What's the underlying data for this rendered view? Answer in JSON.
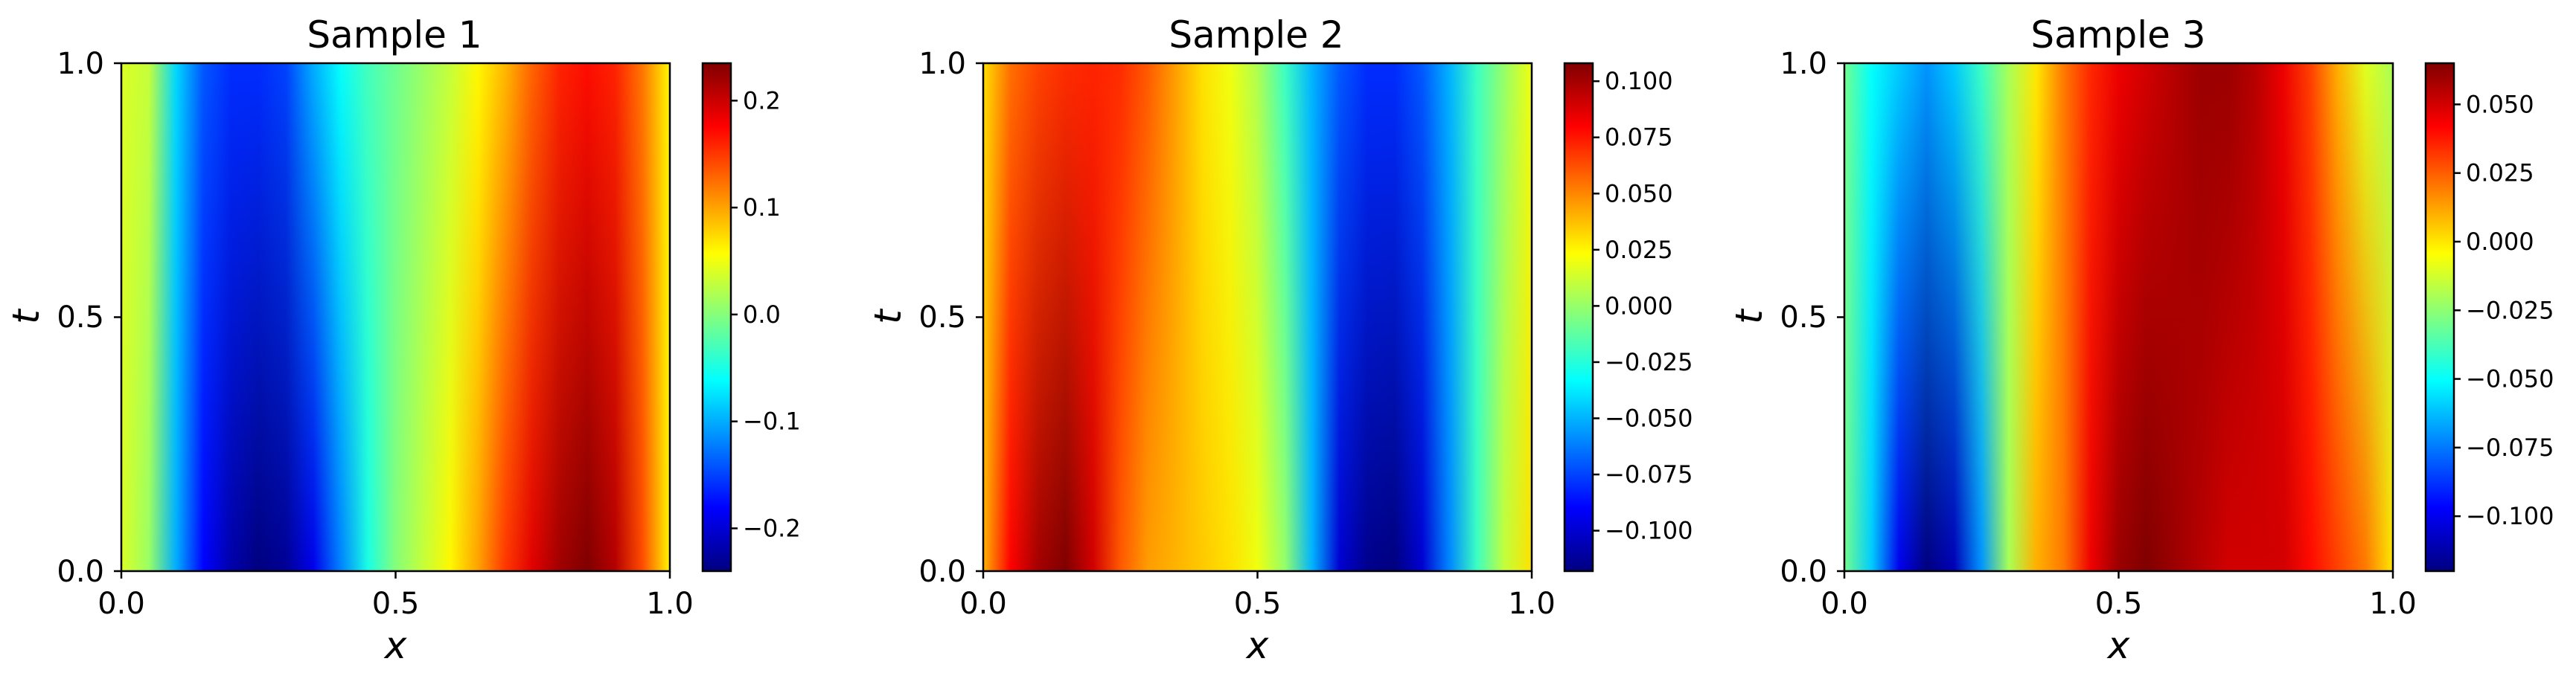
{
  "chart_data": [
    {
      "type": "heatmap",
      "title": "Sample 1",
      "xlabel": "x",
      "ylabel": "t",
      "xlim": [
        0.0,
        1.0
      ],
      "ylim": [
        0.0,
        1.0
      ],
      "x_ticks": [
        "0.0",
        "0.5",
        "1.0"
      ],
      "y_ticks": [
        "0.0",
        "0.5",
        "1.0"
      ],
      "colormap": "jet",
      "vmin": -0.24,
      "vmax": 0.235,
      "colorbar_ticks": [
        0.2,
        0.1,
        0.0,
        -0.1,
        -0.2
      ],
      "colorbar_tick_labels": [
        "0.2",
        "0.1",
        "0.0",
        "−0.1",
        "−0.2"
      ],
      "field": {
        "t_bottom": [
          {
            "x": 0.0,
            "v": 0.04
          },
          {
            "x": 0.05,
            "v": 0.01
          },
          {
            "x": 0.1,
            "v": -0.1
          },
          {
            "x": 0.15,
            "v": -0.18
          },
          {
            "x": 0.2,
            "v": -0.22
          },
          {
            "x": 0.25,
            "v": -0.24
          },
          {
            "x": 0.3,
            "v": -0.23
          },
          {
            "x": 0.35,
            "v": -0.19
          },
          {
            "x": 0.4,
            "v": -0.12
          },
          {
            "x": 0.45,
            "v": -0.05
          },
          {
            "x": 0.5,
            "v": 0.0
          },
          {
            "x": 0.55,
            "v": 0.03
          },
          {
            "x": 0.6,
            "v": 0.06
          },
          {
            "x": 0.65,
            "v": 0.1
          },
          {
            "x": 0.7,
            "v": 0.15
          },
          {
            "x": 0.75,
            "v": 0.19
          },
          {
            "x": 0.8,
            "v": 0.22
          },
          {
            "x": 0.85,
            "v": 0.235
          },
          {
            "x": 0.9,
            "v": 0.21
          },
          {
            "x": 0.95,
            "v": 0.14
          },
          {
            "x": 1.0,
            "v": 0.06
          }
        ],
        "t_top": [
          {
            "x": 0.0,
            "v": 0.04
          },
          {
            "x": 0.05,
            "v": 0.03
          },
          {
            "x": 0.1,
            "v": -0.08
          },
          {
            "x": 0.15,
            "v": -0.14
          },
          {
            "x": 0.2,
            "v": -0.16
          },
          {
            "x": 0.25,
            "v": -0.16
          },
          {
            "x": 0.3,
            "v": -0.15
          },
          {
            "x": 0.35,
            "v": -0.1
          },
          {
            "x": 0.4,
            "v": -0.06
          },
          {
            "x": 0.45,
            "v": -0.03
          },
          {
            "x": 0.5,
            "v": -0.01
          },
          {
            "x": 0.55,
            "v": 0.01
          },
          {
            "x": 0.6,
            "v": 0.03
          },
          {
            "x": 0.65,
            "v": 0.06
          },
          {
            "x": 0.7,
            "v": 0.09
          },
          {
            "x": 0.75,
            "v": 0.13
          },
          {
            "x": 0.8,
            "v": 0.16
          },
          {
            "x": 0.85,
            "v": 0.17
          },
          {
            "x": 0.9,
            "v": 0.16
          },
          {
            "x": 0.95,
            "v": 0.12
          },
          {
            "x": 1.0,
            "v": 0.06
          }
        ]
      }
    },
    {
      "type": "heatmap",
      "title": "Sample 2",
      "xlabel": "x",
      "ylabel": "t",
      "xlim": [
        0.0,
        1.0
      ],
      "ylim": [
        0.0,
        1.0
      ],
      "x_ticks": [
        "0.0",
        "0.5",
        "1.0"
      ],
      "y_ticks": [
        "0.0",
        "0.5",
        "1.0"
      ],
      "colormap": "jet",
      "vmin": -0.118,
      "vmax": 0.108,
      "colorbar_ticks": [
        0.1,
        0.075,
        0.05,
        0.025,
        0.0,
        -0.025,
        -0.05,
        -0.075,
        -0.1
      ],
      "colorbar_tick_labels": [
        "0.100",
        "0.075",
        "0.050",
        "0.025",
        "0.000",
        "−0.025",
        "−0.050",
        "−0.075",
        "−0.100"
      ],
      "field": {
        "t_bottom": [
          {
            "x": 0.0,
            "v": 0.04
          },
          {
            "x": 0.05,
            "v": 0.08
          },
          {
            "x": 0.1,
            "v": 0.1
          },
          {
            "x": 0.15,
            "v": 0.108
          },
          {
            "x": 0.2,
            "v": 0.09
          },
          {
            "x": 0.25,
            "v": 0.06
          },
          {
            "x": 0.3,
            "v": 0.045
          },
          {
            "x": 0.35,
            "v": 0.04
          },
          {
            "x": 0.4,
            "v": 0.035
          },
          {
            "x": 0.45,
            "v": 0.03
          },
          {
            "x": 0.5,
            "v": 0.02
          },
          {
            "x": 0.55,
            "v": 0.0
          },
          {
            "x": 0.6,
            "v": -0.05
          },
          {
            "x": 0.65,
            "v": -0.1
          },
          {
            "x": 0.7,
            "v": -0.115
          },
          {
            "x": 0.75,
            "v": -0.118
          },
          {
            "x": 0.8,
            "v": -0.1
          },
          {
            "x": 0.85,
            "v": -0.06
          },
          {
            "x": 0.9,
            "v": -0.02
          },
          {
            "x": 0.95,
            "v": 0.01
          },
          {
            "x": 1.0,
            "v": 0.03
          }
        ],
        "t_top": [
          {
            "x": 0.0,
            "v": 0.03
          },
          {
            "x": 0.05,
            "v": 0.055
          },
          {
            "x": 0.1,
            "v": 0.065
          },
          {
            "x": 0.15,
            "v": 0.07
          },
          {
            "x": 0.2,
            "v": 0.072
          },
          {
            "x": 0.25,
            "v": 0.07
          },
          {
            "x": 0.3,
            "v": 0.06
          },
          {
            "x": 0.35,
            "v": 0.045
          },
          {
            "x": 0.4,
            "v": 0.03
          },
          {
            "x": 0.45,
            "v": 0.02
          },
          {
            "x": 0.5,
            "v": 0.005
          },
          {
            "x": 0.55,
            "v": -0.02
          },
          {
            "x": 0.6,
            "v": -0.05
          },
          {
            "x": 0.65,
            "v": -0.07
          },
          {
            "x": 0.7,
            "v": -0.08
          },
          {
            "x": 0.75,
            "v": -0.08
          },
          {
            "x": 0.8,
            "v": -0.07
          },
          {
            "x": 0.85,
            "v": -0.05
          },
          {
            "x": 0.9,
            "v": -0.02
          },
          {
            "x": 0.95,
            "v": 0.0
          },
          {
            "x": 1.0,
            "v": 0.02
          }
        ]
      }
    },
    {
      "type": "heatmap",
      "title": "Sample 3",
      "xlabel": "x",
      "ylabel": "t",
      "xlim": [
        0.0,
        1.0
      ],
      "ylim": [
        0.0,
        1.0
      ],
      "x_ticks": [
        "0.0",
        "0.5",
        "1.0"
      ],
      "y_ticks": [
        "0.0",
        "0.5",
        "1.0"
      ],
      "colormap": "jet",
      "vmin": -0.12,
      "vmax": 0.065,
      "colorbar_ticks": [
        0.05,
        0.025,
        0.0,
        -0.025,
        -0.05,
        -0.075,
        -0.1
      ],
      "colorbar_tick_labels": [
        "0.050",
        "0.025",
        "0.000",
        "−0.025",
        "−0.050",
        "−0.075",
        "−0.100"
      ],
      "field": {
        "t_bottom": [
          {
            "x": 0.0,
            "v": -0.03
          },
          {
            "x": 0.05,
            "v": -0.06
          },
          {
            "x": 0.1,
            "v": -0.1
          },
          {
            "x": 0.15,
            "v": -0.12
          },
          {
            "x": 0.2,
            "v": -0.11
          },
          {
            "x": 0.25,
            "v": -0.07
          },
          {
            "x": 0.3,
            "v": -0.02
          },
          {
            "x": 0.35,
            "v": 0.01
          },
          {
            "x": 0.4,
            "v": 0.02
          },
          {
            "x": 0.45,
            "v": 0.045
          },
          {
            "x": 0.5,
            "v": 0.06
          },
          {
            "x": 0.55,
            "v": 0.065
          },
          {
            "x": 0.6,
            "v": 0.06
          },
          {
            "x": 0.65,
            "v": 0.055
          },
          {
            "x": 0.7,
            "v": 0.05
          },
          {
            "x": 0.75,
            "v": 0.05
          },
          {
            "x": 0.8,
            "v": 0.05
          },
          {
            "x": 0.85,
            "v": 0.04
          },
          {
            "x": 0.9,
            "v": 0.03
          },
          {
            "x": 0.95,
            "v": 0.02
          },
          {
            "x": 1.0,
            "v": 0.0
          }
        ],
        "t_top": [
          {
            "x": 0.0,
            "v": -0.03
          },
          {
            "x": 0.05,
            "v": -0.05
          },
          {
            "x": 0.1,
            "v": -0.06
          },
          {
            "x": 0.15,
            "v": -0.07
          },
          {
            "x": 0.2,
            "v": -0.06
          },
          {
            "x": 0.25,
            "v": -0.04
          },
          {
            "x": 0.3,
            "v": -0.02
          },
          {
            "x": 0.35,
            "v": 0.0
          },
          {
            "x": 0.4,
            "v": 0.02
          },
          {
            "x": 0.45,
            "v": 0.035
          },
          {
            "x": 0.5,
            "v": 0.045
          },
          {
            "x": 0.55,
            "v": 0.05
          },
          {
            "x": 0.6,
            "v": 0.055
          },
          {
            "x": 0.65,
            "v": 0.06
          },
          {
            "x": 0.7,
            "v": 0.06
          },
          {
            "x": 0.75,
            "v": 0.055
          },
          {
            "x": 0.8,
            "v": 0.045
          },
          {
            "x": 0.85,
            "v": 0.03
          },
          {
            "x": 0.9,
            "v": 0.01
          },
          {
            "x": 0.95,
            "v": -0.01
          },
          {
            "x": 1.0,
            "v": -0.02
          }
        ]
      }
    }
  ]
}
